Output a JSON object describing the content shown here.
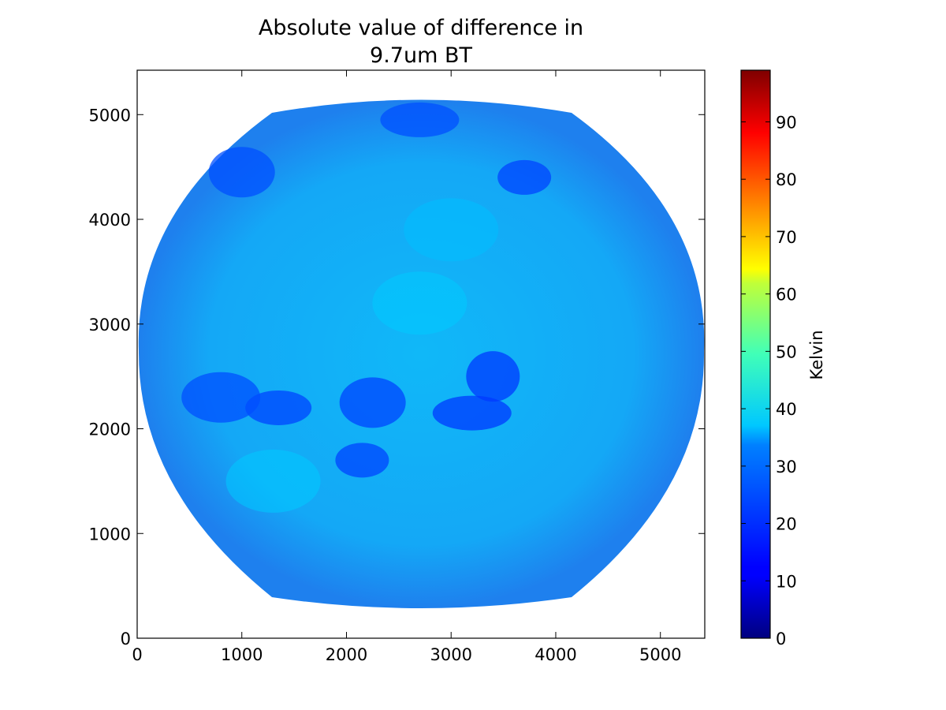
{
  "chart_data": {
    "type": "heatmap",
    "title": "Absolute value of difference in",
    "subtitle": "9.7um BT",
    "xlabel": "",
    "ylabel": "",
    "xlim": [
      0,
      5424
    ],
    "ylim": [
      5424,
      0
    ],
    "x_ticks": [
      0,
      1000,
      2000,
      3000,
      4000,
      5000
    ],
    "y_ticks": [
      0,
      1000,
      2000,
      3000,
      4000,
      5000
    ],
    "grid": false,
    "colormap": "jet",
    "colorbar": {
      "label": "Kelvin",
      "range": [
        0,
        99
      ],
      "ticks": [
        0,
        10,
        20,
        30,
        40,
        50,
        60,
        70,
        80,
        90
      ]
    },
    "background_value_range": [
      24,
      32
    ],
    "features": [
      {
        "kind": "deep-convection",
        "value": 19,
        "x": 2150,
        "y": 1700
      },
      {
        "kind": "deep-convection",
        "value": 19,
        "x": 2250,
        "y": 2250
      },
      {
        "kind": "deep-convection",
        "value": 18,
        "x": 3200,
        "y": 2150
      },
      {
        "kind": "deep-convection",
        "value": 18,
        "x": 3400,
        "y": 2500
      },
      {
        "kind": "deep-convection",
        "value": 19,
        "x": 1350,
        "y": 2200
      },
      {
        "kind": "deep-convection",
        "value": 20,
        "x": 800,
        "y": 2300
      },
      {
        "kind": "deep-convection",
        "value": 19,
        "x": 3700,
        "y": 4400
      },
      {
        "kind": "deep-convection",
        "value": 20,
        "x": 1000,
        "y": 4450
      },
      {
        "kind": "deep-convection",
        "value": 20,
        "x": 2700,
        "y": 4950
      },
      {
        "kind": "warm-region",
        "value": 32,
        "x": 1300,
        "y": 1500
      },
      {
        "kind": "warm-region",
        "value": 32,
        "x": 2700,
        "y": 3200
      },
      {
        "kind": "warm-region",
        "value": 31,
        "x": 3000,
        "y": 3900
      }
    ]
  }
}
